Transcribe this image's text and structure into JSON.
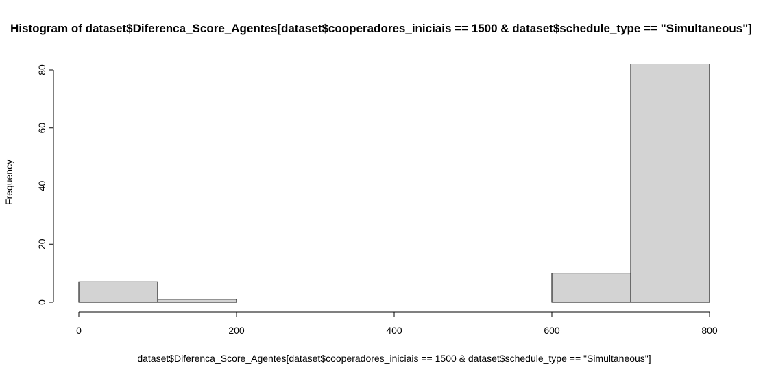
{
  "chart_data": {
    "type": "bar",
    "title": "Histogram of dataset$Diferenca_Score_Agentes[dataset$cooperadores_iniciais == 1500 & dataset$schedule_type == \"Simultaneous\"]",
    "xlabel": "dataset$Diferenca_Score_Agentes[dataset$cooperadores_iniciais == 1500 & dataset$schedule_type == \"Simultaneous\"]",
    "ylabel": "Frequency",
    "bins": [
      {
        "start": 0,
        "end": 100,
        "count": 7
      },
      {
        "start": 100,
        "end": 200,
        "count": 1
      },
      {
        "start": 200,
        "end": 300,
        "count": 0
      },
      {
        "start": 300,
        "end": 400,
        "count": 0
      },
      {
        "start": 400,
        "end": 500,
        "count": 0
      },
      {
        "start": 500,
        "end": 600,
        "count": 0
      },
      {
        "start": 600,
        "end": 700,
        "count": 10
      },
      {
        "start": 700,
        "end": 800,
        "count": 82
      }
    ],
    "xlim": [
      0,
      800
    ],
    "ylim": [
      0,
      82
    ],
    "x_ticks": [
      0,
      200,
      400,
      600,
      800
    ],
    "y_ticks": [
      0,
      20,
      40,
      60,
      80
    ],
    "bar_fill": "#d3d3d3",
    "bar_stroke": "#000000",
    "grid": false
  }
}
